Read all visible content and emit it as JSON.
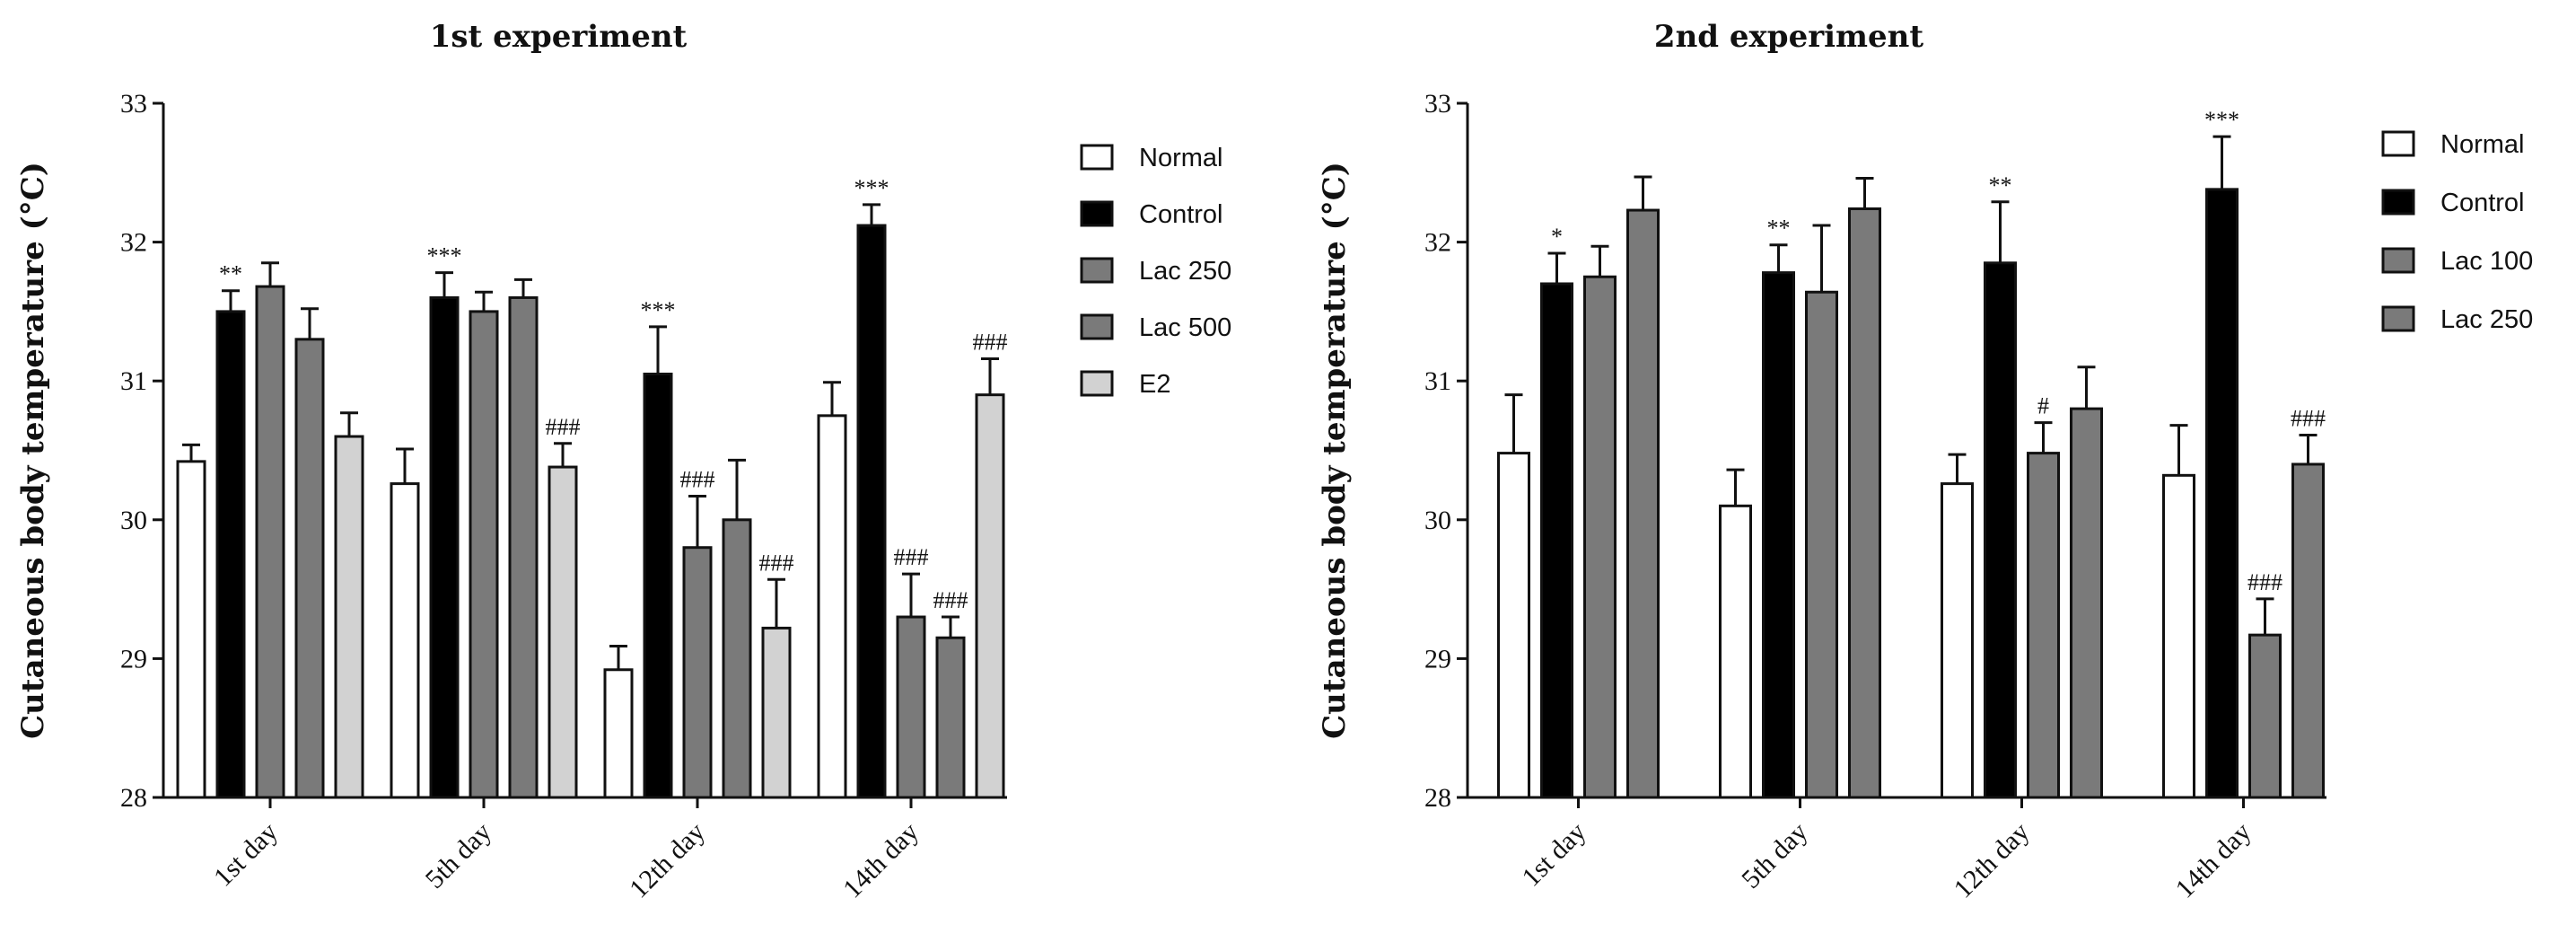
{
  "chart_data": [
    {
      "type": "bar",
      "title": "1st experiment",
      "xlabel": "",
      "ylabel": "Cutaneous body temperature (°C)",
      "ylim": [
        28,
        33
      ],
      "yticks": [
        28,
        29,
        30,
        31,
        32,
        33
      ],
      "categories": [
        "1st day",
        "5th day",
        "12th day",
        "14th day"
      ],
      "legend_position": "right",
      "series": [
        {
          "name": "Normal",
          "color": "#ffffff",
          "values": [
            30.42,
            30.26,
            28.92,
            30.75
          ],
          "errors": [
            0.12,
            0.25,
            0.17,
            0.24
          ],
          "annotations": [
            "",
            "",
            "",
            ""
          ]
        },
        {
          "name": "Control",
          "color": "#000000",
          "values": [
            31.5,
            31.6,
            31.05,
            32.12
          ],
          "errors": [
            0.15,
            0.18,
            0.34,
            0.15
          ],
          "annotations": [
            "**",
            "***",
            "***",
            "***"
          ]
        },
        {
          "name": "Lac 250",
          "color": "#7a7a7a",
          "values": [
            31.68,
            31.5,
            29.8,
            29.3
          ],
          "errors": [
            0.17,
            0.14,
            0.37,
            0.31
          ],
          "annotations": [
            "",
            "",
            "###",
            "###"
          ]
        },
        {
          "name": "Lac 500",
          "color": "#7a7a7a",
          "values": [
            31.3,
            31.6,
            30.0,
            29.15
          ],
          "errors": [
            0.22,
            0.13,
            0.43,
            0.15
          ],
          "annotations": [
            "",
            "",
            "",
            "###"
          ]
        },
        {
          "name": "E2",
          "color": "#d2d2d2",
          "values": [
            30.6,
            30.38,
            29.22,
            30.9
          ],
          "errors": [
            0.17,
            0.17,
            0.35,
            0.26
          ],
          "annotations": [
            "",
            "###",
            "###",
            "###"
          ]
        }
      ]
    },
    {
      "type": "bar",
      "title": "2nd experiment",
      "xlabel": "",
      "ylabel": "Cutaneous body temperature (°C)",
      "ylim": [
        28,
        33
      ],
      "yticks": [
        28,
        29,
        30,
        31,
        32,
        33
      ],
      "categories": [
        "1st day",
        "5th day",
        "12th day",
        "14th day"
      ],
      "legend_position": "right",
      "series": [
        {
          "name": "Normal",
          "color": "#ffffff",
          "values": [
            30.48,
            30.1,
            30.26,
            30.32
          ],
          "errors": [
            0.42,
            0.26,
            0.21,
            0.36
          ],
          "annotations": [
            "",
            "",
            "",
            ""
          ]
        },
        {
          "name": "Control",
          "color": "#000000",
          "values": [
            31.7,
            31.78,
            31.85,
            32.38
          ],
          "errors": [
            0.22,
            0.2,
            0.44,
            0.38
          ],
          "annotations": [
            "*",
            "**",
            "**",
            "***"
          ]
        },
        {
          "name": "Lac 100",
          "color": "#7a7a7a",
          "values": [
            31.75,
            31.64,
            30.48,
            29.17
          ],
          "errors": [
            0.22,
            0.48,
            0.22,
            0.26
          ],
          "annotations": [
            "",
            "",
            "#",
            "###"
          ]
        },
        {
          "name": "Lac 250",
          "color": "#7a7a7a",
          "values": [
            32.23,
            32.24,
            30.8,
            30.4
          ],
          "errors": [
            0.24,
            0.22,
            0.3,
            0.21
          ],
          "annotations": [
            "",
            "",
            "",
            "###"
          ]
        }
      ]
    }
  ]
}
